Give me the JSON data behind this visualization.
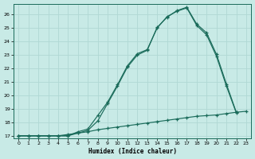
{
  "xlabel": "Humidex (Indice chaleur)",
  "bg_color": "#c8eae6",
  "line_color": "#1a6b5a",
  "grid_color": "#b0d8d4",
  "xlim": [
    -0.5,
    23.5
  ],
  "ylim": [
    16.8,
    26.8
  ],
  "yticks": [
    17,
    18,
    19,
    20,
    21,
    22,
    23,
    24,
    25,
    26
  ],
  "xticks": [
    0,
    1,
    2,
    3,
    4,
    5,
    6,
    7,
    8,
    9,
    10,
    11,
    12,
    13,
    14,
    15,
    16,
    17,
    18,
    19,
    20,
    21,
    22,
    23
  ],
  "series1_x": [
    0,
    1,
    2,
    3,
    4,
    5,
    6,
    7,
    8,
    9,
    10,
    11,
    12,
    13,
    14,
    15,
    16,
    17,
    18,
    19,
    20,
    21,
    22,
    23
  ],
  "series1_y": [
    17.0,
    17.0,
    17.0,
    17.0,
    17.0,
    17.1,
    17.2,
    17.3,
    17.45,
    17.55,
    17.65,
    17.75,
    17.85,
    17.95,
    18.05,
    18.15,
    18.25,
    18.35,
    18.45,
    18.5,
    18.55,
    18.65,
    18.75,
    18.82
  ],
  "series2_x": [
    0,
    1,
    2,
    3,
    4,
    5,
    6,
    7,
    8,
    9,
    10,
    11,
    12,
    13,
    14,
    15,
    16,
    17,
    18,
    19,
    20,
    21,
    22
  ],
  "series2_y": [
    17.0,
    17.0,
    17.0,
    17.0,
    17.0,
    17.0,
    17.3,
    17.5,
    18.5,
    19.5,
    20.8,
    22.2,
    23.1,
    23.4,
    25.0,
    25.85,
    26.25,
    26.5,
    25.2,
    24.5,
    22.9,
    20.7,
    18.7
  ],
  "series3_x": [
    0,
    1,
    2,
    3,
    4,
    5,
    6,
    7,
    8,
    9,
    10,
    11,
    12,
    13,
    14,
    15,
    16,
    17,
    18,
    19,
    20,
    21,
    22
  ],
  "series3_y": [
    17.0,
    17.0,
    17.0,
    17.0,
    17.0,
    17.0,
    17.2,
    17.4,
    18.1,
    19.4,
    20.7,
    22.1,
    23.0,
    23.35,
    25.05,
    25.8,
    26.3,
    26.55,
    25.3,
    24.65,
    23.05,
    20.85,
    18.75
  ]
}
